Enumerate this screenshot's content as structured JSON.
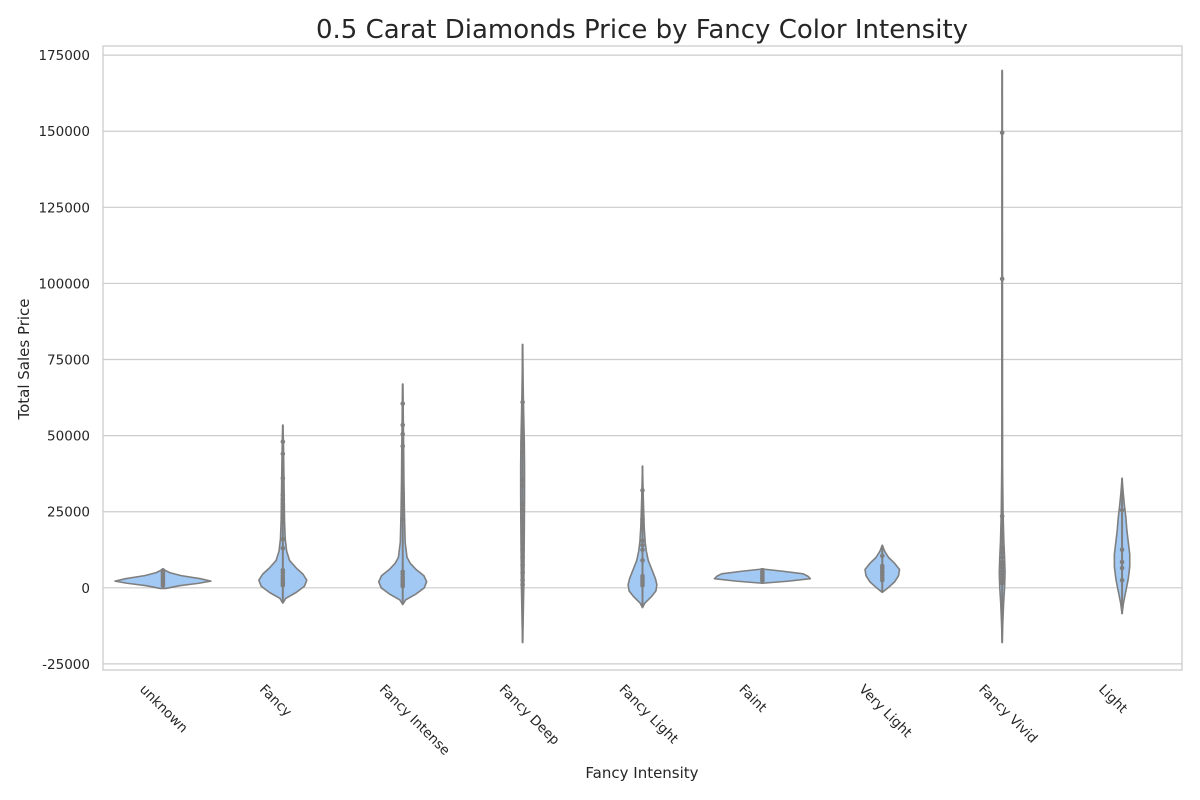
{
  "chart_data": {
    "type": "violin",
    "title": "0.5 Carat Diamonds Price by Fancy Color Intensity",
    "xlabel": "Fancy Intensity",
    "ylabel": "Total Sales Price",
    "ylim": [
      -27000,
      178000
    ],
    "yticks": [
      -25000,
      0,
      25000,
      50000,
      75000,
      100000,
      125000,
      150000,
      175000
    ],
    "grid": true,
    "colors": {
      "fill": "#a1c9f4",
      "line": "#7f7f7f",
      "grid": "#cccccc"
    },
    "categories": [
      "unknown",
      "Fancy",
      "Fancy Intense",
      "Fancy Deep",
      "Fancy Light",
      "Faint",
      "Very Light",
      "Fancy Vivid",
      "Light"
    ],
    "violins": [
      {
        "category": "unknown",
        "profile": [
          [
            -200,
            0.06
          ],
          [
            700,
            0.35
          ],
          [
            1500,
            0.75
          ],
          [
            2200,
            1.0
          ],
          [
            3000,
            0.78
          ],
          [
            4000,
            0.38
          ],
          [
            5000,
            0.14
          ],
          [
            5800,
            0.04
          ],
          [
            6300,
            0
          ]
        ],
        "points": [
          700,
          1300,
          2000,
          2600,
          3200,
          3800,
          4400,
          5000,
          5600
        ]
      },
      {
        "category": "Fancy",
        "profile": [
          [
            -5000,
            0
          ],
          [
            -3500,
            0.06
          ],
          [
            -1500,
            0.28
          ],
          [
            500,
            0.45
          ],
          [
            2500,
            0.5
          ],
          [
            4500,
            0.42
          ],
          [
            6500,
            0.28
          ],
          [
            9000,
            0.14
          ],
          [
            12000,
            0.08
          ],
          [
            16000,
            0.05
          ],
          [
            22000,
            0.035
          ],
          [
            30000,
            0.028
          ],
          [
            40000,
            0.02
          ],
          [
            48000,
            0.012
          ],
          [
            53500,
            0
          ]
        ],
        "points": [
          800,
          1500,
          2300,
          3100,
          4000,
          5000,
          5800,
          13000,
          16000,
          21500,
          22500,
          23500,
          26500,
          27500,
          29000,
          30500,
          36000,
          44000,
          48000
        ]
      },
      {
        "category": "Fancy Intense",
        "profile": [
          [
            -5500,
            0
          ],
          [
            -4000,
            0.06
          ],
          [
            -2000,
            0.28
          ],
          [
            0,
            0.45
          ],
          [
            2000,
            0.5
          ],
          [
            4000,
            0.44
          ],
          [
            6000,
            0.28
          ],
          [
            8000,
            0.16
          ],
          [
            10000,
            0.09
          ],
          [
            15000,
            0.05
          ],
          [
            25000,
            0.035
          ],
          [
            35000,
            0.025
          ],
          [
            45000,
            0.02
          ],
          [
            55000,
            0.012
          ],
          [
            61000,
            0.008
          ],
          [
            67000,
            0
          ]
        ],
        "points": [
          500,
          1200,
          2000,
          2800,
          3600,
          4500,
          5300,
          22500,
          28000,
          29000,
          30000,
          31000,
          46500,
          50500,
          53500,
          60500
        ]
      },
      {
        "category": "Fancy Deep",
        "profile": [
          [
            -18000,
            0
          ],
          [
            -12000,
            0.01
          ],
          [
            -5000,
            0.018
          ],
          [
            0,
            0.024
          ],
          [
            10000,
            0.03
          ],
          [
            20000,
            0.036
          ],
          [
            30000,
            0.04
          ],
          [
            40000,
            0.04
          ],
          [
            48000,
            0.035
          ],
          [
            55000,
            0.025
          ],
          [
            62000,
            0.016
          ],
          [
            70000,
            0.008
          ],
          [
            80000,
            0
          ]
        ],
        "points": [
          1000,
          2500,
          5000,
          7500,
          10000,
          12500,
          15000,
          18000,
          22500,
          25500,
          27500,
          33500,
          35500,
          44500,
          47000,
          48000,
          61000
        ]
      },
      {
        "category": "Fancy Light",
        "profile": [
          [
            -6500,
            0
          ],
          [
            -5000,
            0.05
          ],
          [
            -3000,
            0.18
          ],
          [
            -1000,
            0.28
          ],
          [
            1000,
            0.3
          ],
          [
            3000,
            0.27
          ],
          [
            5000,
            0.22
          ],
          [
            7000,
            0.17
          ],
          [
            9000,
            0.12
          ],
          [
            12000,
            0.08
          ],
          [
            15000,
            0.055
          ],
          [
            20000,
            0.035
          ],
          [
            25000,
            0.025
          ],
          [
            30000,
            0.015
          ],
          [
            35000,
            0.008
          ],
          [
            40000,
            0
          ]
        ],
        "points": [
          800,
          1500,
          2300,
          3100,
          3900,
          9000,
          12500,
          14000,
          15500,
          22500,
          32000
        ]
      },
      {
        "category": "Faint",
        "profile": [
          [
            1500,
            0
          ],
          [
            2200,
            0.55
          ],
          [
            3000,
            1.0
          ],
          [
            3800,
            0.95
          ],
          [
            4600,
            0.85
          ],
          [
            5400,
            0.45
          ],
          [
            6100,
            0.05
          ],
          [
            6300,
            0
          ]
        ],
        "points": [
          2300,
          2900,
          3500,
          4100,
          4800,
          5400
        ]
      },
      {
        "category": "Very Light",
        "profile": [
          [
            -1500,
            0
          ],
          [
            0,
            0.12
          ],
          [
            2000,
            0.26
          ],
          [
            4000,
            0.34
          ],
          [
            6000,
            0.36
          ],
          [
            8000,
            0.26
          ],
          [
            10000,
            0.13
          ],
          [
            12000,
            0.05
          ],
          [
            14000,
            0
          ]
        ],
        "points": [
          2500,
          3300,
          4100,
          4900,
          5700,
          6500,
          7200,
          10500
        ]
      },
      {
        "category": "Fancy Vivid",
        "profile": [
          [
            -18000,
            0
          ],
          [
            -12000,
            0.012
          ],
          [
            -5000,
            0.03
          ],
          [
            0,
            0.05
          ],
          [
            5000,
            0.06
          ],
          [
            10000,
            0.05
          ],
          [
            15000,
            0.035
          ],
          [
            25000,
            0.018
          ],
          [
            40000,
            0.008
          ],
          [
            60000,
            0.005
          ],
          [
            100000,
            0.004
          ],
          [
            150000,
            0.002
          ],
          [
            170000,
            0
          ]
        ],
        "points": [
          1500,
          2500,
          3500,
          4500,
          5500,
          6500,
          7500,
          8500,
          10000,
          11500,
          13000,
          16000,
          23500,
          101500,
          149500
        ]
      },
      {
        "category": "Light",
        "profile": [
          [
            -8500,
            0
          ],
          [
            -5000,
            0.03
          ],
          [
            -1000,
            0.08
          ],
          [
            3000,
            0.13
          ],
          [
            7000,
            0.16
          ],
          [
            11000,
            0.16
          ],
          [
            15000,
            0.13
          ],
          [
            19000,
            0.1
          ],
          [
            23000,
            0.08
          ],
          [
            27000,
            0.05
          ],
          [
            31000,
            0.025
          ],
          [
            36000,
            0
          ]
        ],
        "points": [
          2500,
          6500,
          8500,
          12500,
          25500
        ]
      }
    ]
  }
}
